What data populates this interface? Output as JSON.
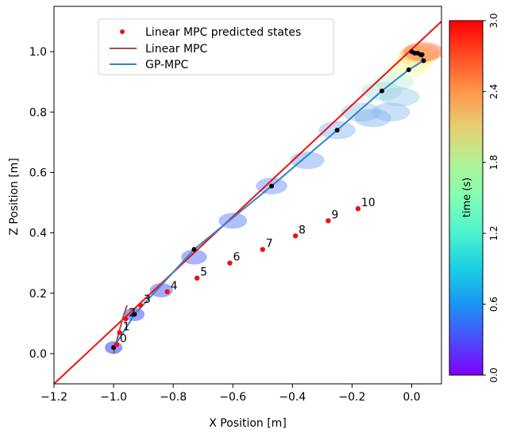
{
  "chart_data": {
    "type": "line",
    "title": "",
    "xlabel": "X Position [m]",
    "ylabel": "Z Position [m]",
    "xlim": [
      -1.2,
      0.1
    ],
    "ylim": [
      -0.1,
      1.15
    ],
    "xticks": [
      -1.2,
      -1.0,
      -0.8,
      -0.6,
      -0.4,
      -0.2,
      0.0
    ],
    "xtick_labels": [
      "−1.2",
      "−1.0",
      "−0.8",
      "−0.6",
      "−0.4",
      "−0.2",
      "0.0"
    ],
    "yticks": [
      0.0,
      0.2,
      0.4,
      0.6,
      0.8,
      1.0
    ],
    "ytick_labels": [
      "0.0",
      "0.2",
      "0.4",
      "0.6",
      "0.8",
      "1.0"
    ],
    "grid": false,
    "legend_position": "top-left",
    "legend": [
      {
        "label": "Linear MPC predicted states",
        "kind": "marker",
        "color": "#ee1111"
      },
      {
        "label": "Linear MPC",
        "kind": "line",
        "color": "#a0524a"
      },
      {
        "label": "GP-MPC",
        "kind": "line",
        "color": "#2e86c1"
      }
    ],
    "constraint_line": {
      "color": "#ee1111",
      "points": [
        [
          -1.2,
          -0.1
        ],
        [
          0.1,
          1.1
        ]
      ]
    },
    "linear_mpc_predicted_states": {
      "color": "#ee1111",
      "x": [
        -0.99,
        -0.98,
        -0.96,
        -0.91,
        -0.82,
        -0.72,
        -0.61,
        -0.5,
        -0.39,
        -0.28,
        -0.18
      ],
      "y": [
        0.03,
        0.07,
        0.115,
        0.16,
        0.205,
        0.25,
        0.3,
        0.345,
        0.39,
        0.44,
        0.48
      ],
      "labels": [
        "0",
        "1",
        "2",
        "3",
        "4",
        "5",
        "6",
        "7",
        "8",
        "9",
        "10"
      ]
    },
    "linear_mpc_line": {
      "color": "#a0524a",
      "x": [
        -1.0,
        -0.985,
        -0.97,
        -0.955
      ],
      "y": [
        0.0,
        0.06,
        0.115,
        0.16
      ]
    },
    "gp_mpc": {
      "color": "#2e86c1",
      "x": [
        -1.0,
        -0.93,
        -0.73,
        -0.47,
        -0.25,
        -0.1,
        -0.01,
        0.04,
        0.03,
        0.01,
        0.0,
        0.02,
        0.035
      ],
      "y": [
        0.02,
        0.13,
        0.345,
        0.555,
        0.74,
        0.87,
        0.94,
        0.97,
        0.99,
        0.995,
        1.0,
        0.995,
        0.99
      ],
      "marker_color": "#000000"
    },
    "uncertainty_ellipses": {
      "x": [
        -1.0,
        -0.93,
        -0.84,
        -0.73,
        -0.6,
        -0.47,
        -0.35,
        -0.25,
        -0.17,
        -0.1,
        -0.06,
        -0.02,
        0.0,
        0.02,
        0.03,
        0.04,
        -0.13,
        -0.07,
        -0.04
      ],
      "y": [
        0.02,
        0.13,
        0.21,
        0.32,
        0.44,
        0.555,
        0.64,
        0.74,
        0.8,
        0.87,
        0.9,
        0.94,
        0.96,
        0.985,
        0.995,
        1.0,
        0.78,
        0.8,
        0.85
      ],
      "t": [
        0.0,
        0.1,
        0.2,
        0.3,
        0.4,
        0.5,
        0.6,
        0.7,
        0.8,
        0.95,
        1.1,
        1.4,
        1.7,
        2.0,
        2.3,
        2.6,
        0.7,
        0.75,
        0.85
      ]
    },
    "colorbar": {
      "label": "time (s)",
      "colormap": "rainbow",
      "lim": [
        0.0,
        3.0
      ],
      "ticks": [
        0.0,
        0.6,
        1.2,
        1.8,
        2.4,
        3.0
      ],
      "tick_labels": [
        "0.0",
        "0.6",
        "1.2",
        "1.8",
        "2.4",
        "3.0"
      ]
    }
  }
}
